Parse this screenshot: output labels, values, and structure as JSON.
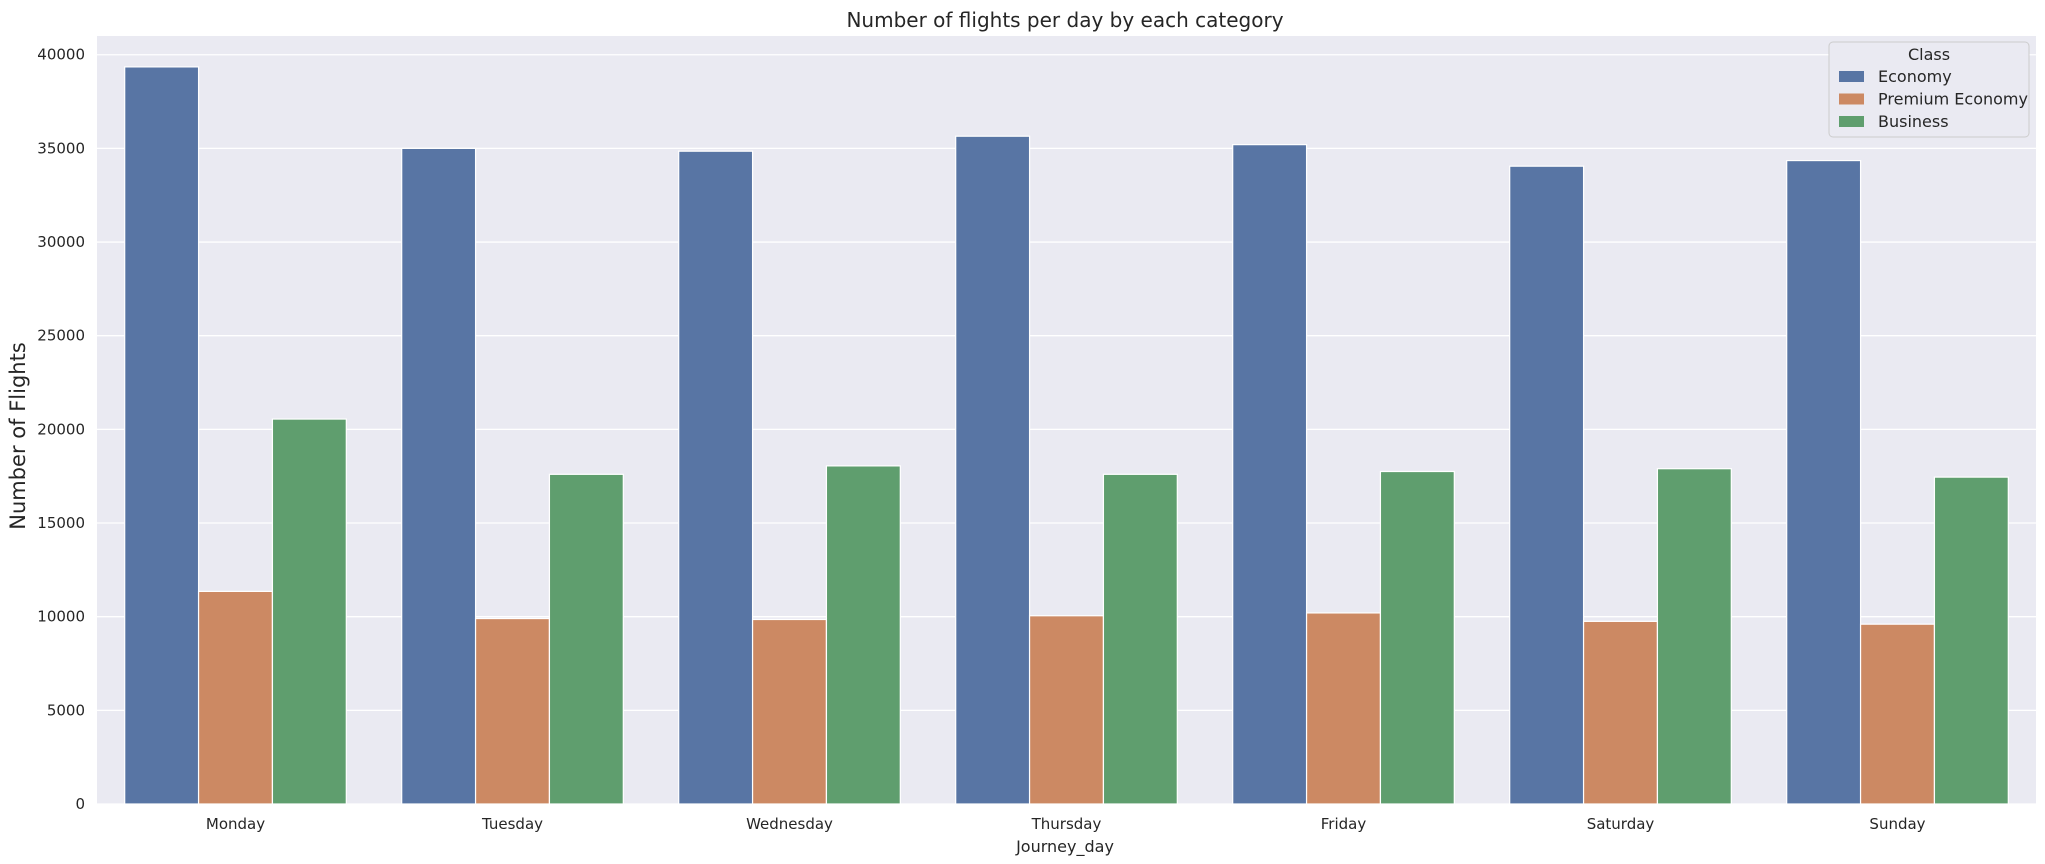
{
  "chart_data": {
    "type": "bar",
    "title": "Number of flights per day by each category",
    "xlabel": "Journey_day",
    "ylabel": "Number of Flights",
    "categories": [
      "Monday",
      "Tuesday",
      "Wednesday",
      "Thursday",
      "Friday",
      "Saturday",
      "Sunday"
    ],
    "series": [
      {
        "name": "Economy",
        "color": "#5875a4",
        "values": [
          39350,
          35000,
          34850,
          35650,
          35200,
          34050,
          34350
        ]
      },
      {
        "name": "Premium Economy",
        "color": "#cc8963",
        "values": [
          11350,
          9900,
          9850,
          10050,
          10200,
          9750,
          9600
        ]
      },
      {
        "name": "Business",
        "color": "#5f9e6e",
        "values": [
          20550,
          17600,
          18050,
          17600,
          17750,
          17900,
          17450
        ]
      }
    ],
    "ylim": [
      0,
      41000
    ],
    "yticks": [
      0,
      5000,
      10000,
      15000,
      20000,
      25000,
      30000,
      35000,
      40000
    ],
    "grid": true,
    "legend": {
      "title": "Class",
      "position": "top-right"
    },
    "background": "#eaeaf2"
  }
}
